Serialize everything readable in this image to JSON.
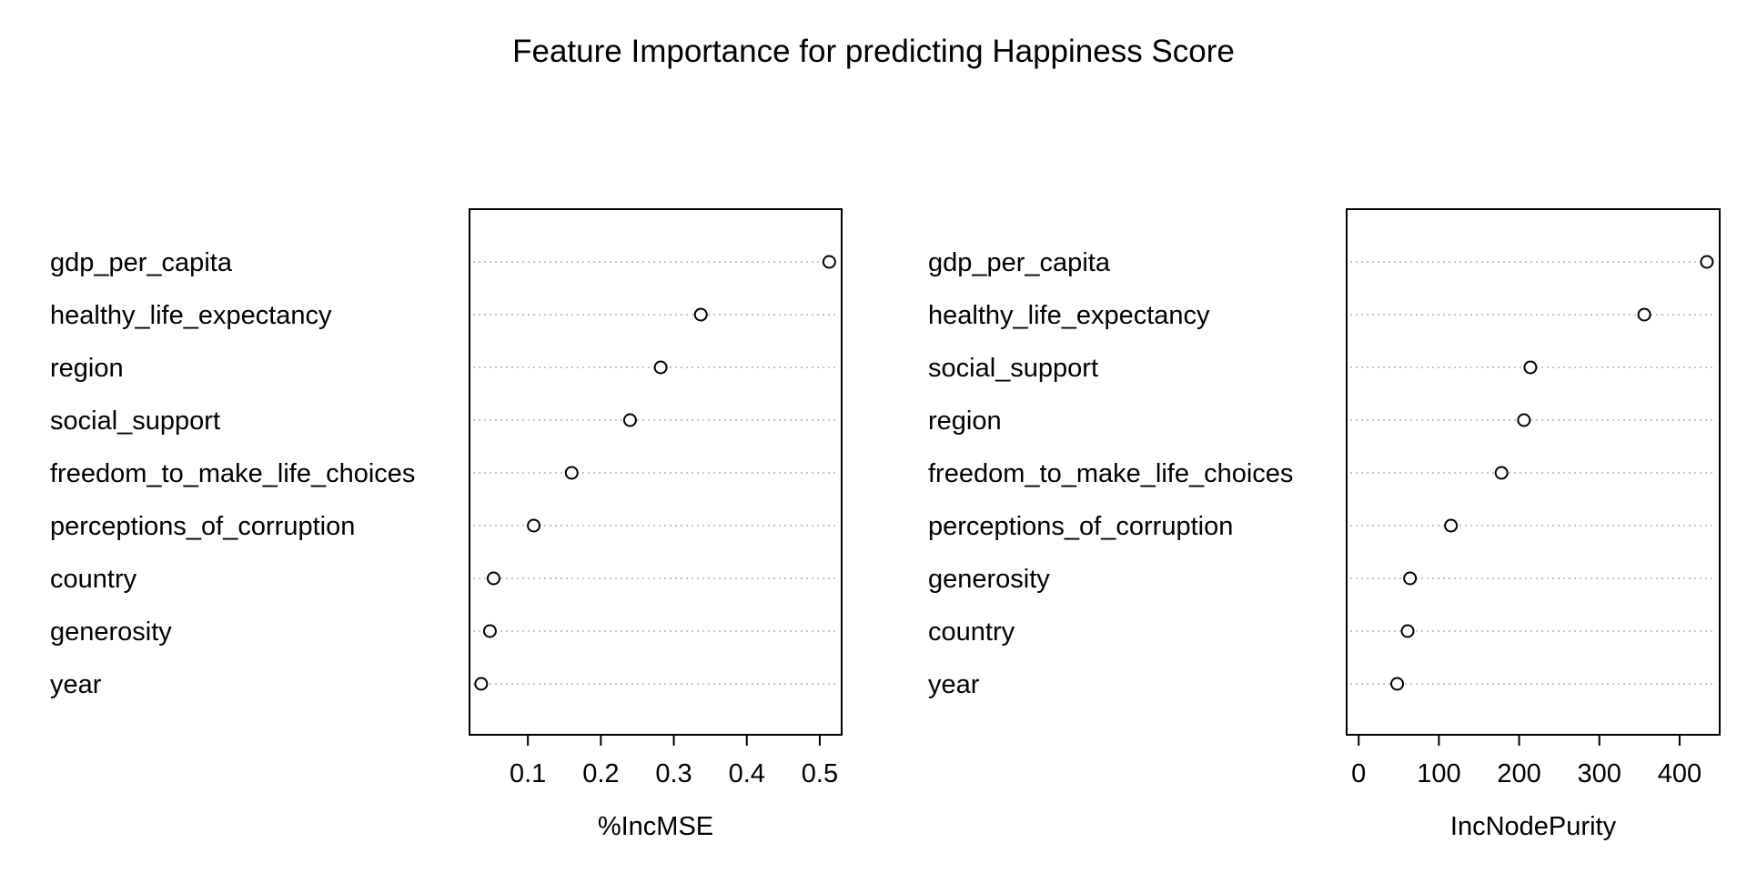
{
  "title": "Feature Importance for predicting Happiness Score",
  "chart_data": [
    {
      "type": "scatter",
      "xlabel": "%IncMSE",
      "xlim": [
        0.02,
        0.53
      ],
      "xticks": [
        0.1,
        0.2,
        0.3,
        0.4,
        0.5
      ],
      "tick_labels": [
        "0.1",
        "0.2",
        "0.3",
        "0.4",
        "0.5"
      ],
      "grid": "dotted horizontal",
      "categories": [
        "gdp_per_capita",
        "healthy_life_expectancy",
        "region",
        "social_support",
        "freedom_to_make_life_choices",
        "perceptions_of_corruption",
        "country",
        "generosity",
        "year"
      ],
      "values": [
        0.513,
        0.337,
        0.282,
        0.24,
        0.16,
        0.108,
        0.053,
        0.048,
        0.036
      ]
    },
    {
      "type": "scatter",
      "xlabel": "IncNodePurity",
      "xlim": [
        -15,
        450
      ],
      "xticks": [
        0,
        100,
        200,
        300,
        400
      ],
      "tick_labels": [
        "0",
        "100",
        "200",
        "300",
        "400"
      ],
      "grid": "dotted horizontal",
      "categories": [
        "gdp_per_capita",
        "healthy_life_expectancy",
        "social_support",
        "region",
        "freedom_to_make_life_choices",
        "perceptions_of_corruption",
        "generosity",
        "country",
        "year"
      ],
      "values": [
        434,
        356,
        214,
        206,
        178,
        115,
        64,
        61,
        48
      ]
    }
  ]
}
